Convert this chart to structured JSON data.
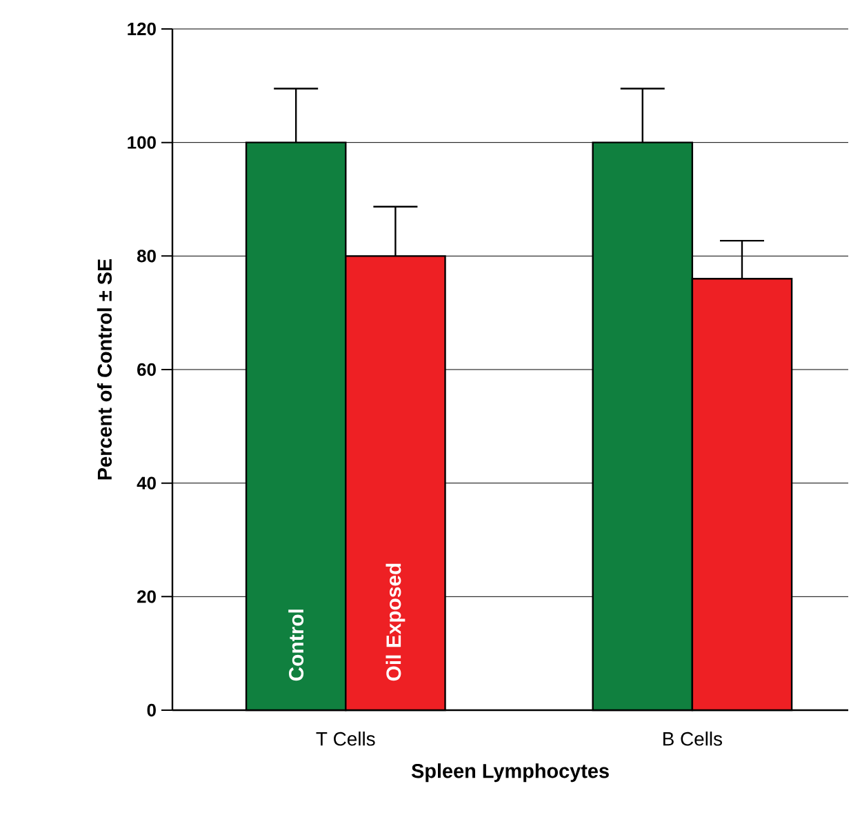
{
  "chart_data": {
    "type": "bar",
    "xlabel": "Spleen Lymphocytes",
    "ylabel": "Percent of Control ± SE",
    "categories": [
      "T Cells",
      "B Cells"
    ],
    "series": [
      {
        "name": "Control",
        "color": "#10803f",
        "values": [
          100,
          100
        ],
        "errors": [
          9.5,
          9.5
        ]
      },
      {
        "name": "Oil Exposed",
        "color": "#ee2024",
        "values": [
          80,
          76
        ],
        "errors": [
          8.7,
          6.7
        ]
      }
    ],
    "ylim": [
      0,
      120
    ],
    "yticks": [
      0,
      20,
      40,
      60,
      80,
      100,
      120
    ],
    "grid": "y"
  }
}
